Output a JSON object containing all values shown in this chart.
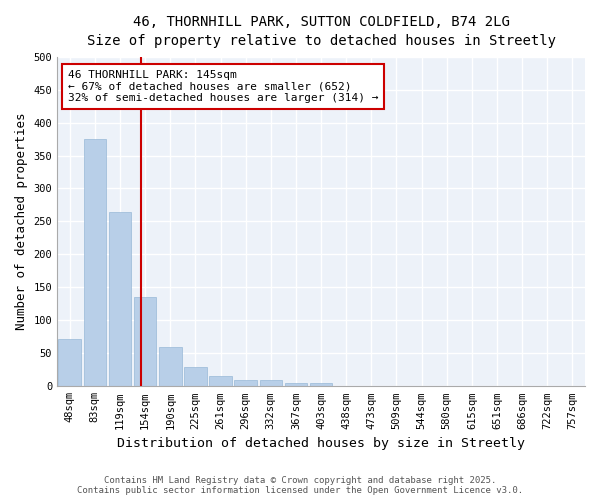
{
  "title_line1": "46, THORNHILL PARK, SUTTON COLDFIELD, B74 2LG",
  "title_line2": "Size of property relative to detached houses in Streetly",
  "xlabel": "Distribution of detached houses by size in Streetly",
  "ylabel": "Number of detached properties",
  "categories": [
    "48sqm",
    "83sqm",
    "119sqm",
    "154sqm",
    "190sqm",
    "225sqm",
    "261sqm",
    "296sqm",
    "332sqm",
    "367sqm",
    "403sqm",
    "438sqm",
    "473sqm",
    "509sqm",
    "544sqm",
    "580sqm",
    "615sqm",
    "651sqm",
    "686sqm",
    "722sqm",
    "757sqm"
  ],
  "values": [
    72,
    375,
    265,
    135,
    60,
    30,
    15,
    10,
    10,
    5,
    5,
    1,
    0,
    0,
    1,
    0,
    0,
    0,
    0,
    0,
    1
  ],
  "bar_color": "#b8cfe8",
  "annotation_box_color": "#cc0000",
  "annotation_line1": "46 THORNHILL PARK: 145sqm",
  "annotation_line2": "← 67% of detached houses are smaller (652)",
  "annotation_line3": "32% of semi-detached houses are larger (314) →",
  "footer_line1": "Contains HM Land Registry data © Crown copyright and database right 2025.",
  "footer_line2": "Contains public sector information licensed under the Open Government Licence v3.0.",
  "ylim": [
    0,
    500
  ],
  "yticks": [
    0,
    50,
    100,
    150,
    200,
    250,
    300,
    350,
    400,
    450,
    500
  ],
  "background_color": "#edf2f9",
  "grid_color": "#ffffff",
  "property_line_idx": 2.82,
  "title_fontsize": 10,
  "subtitle_fontsize": 9,
  "axis_label_fontsize": 9,
  "tick_fontsize": 7.5,
  "annotation_fontsize": 8,
  "footer_fontsize": 6.5
}
